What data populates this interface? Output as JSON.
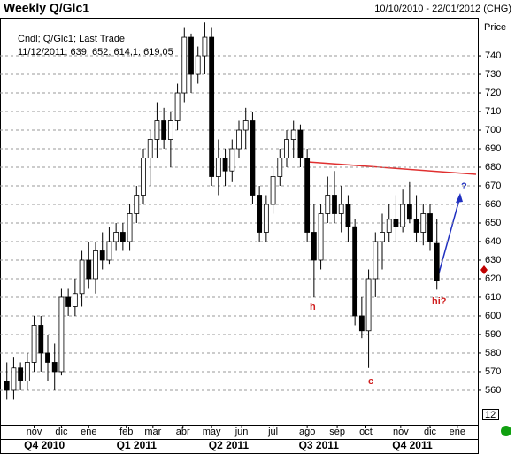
{
  "chart_data": {
    "type": "candlestick",
    "title": "Weekly Q/Glc1",
    "date_range": "10/10/2010 - 22/01/2012 (CHG)",
    "legend_lines": [
      "Cndl; Q/Glc1; Last Trade",
      "11/12/2011; 639; 652; 614,1; 619,05"
    ],
    "y_axis_label": "Price",
    "corner_label": "12",
    "up_color": "#ffffff",
    "down_color": "#000000",
    "ylim": [
      541.4,
      760.5
    ],
    "yticks": [
      560,
      570,
      580,
      590,
      600,
      610,
      620,
      630,
      640,
      650,
      660,
      670,
      680,
      690,
      700,
      710,
      720,
      730,
      740
    ],
    "xlim": [
      -1,
      69
    ],
    "xticks": [
      {
        "value": 4,
        "label": "nov"
      },
      {
        "value": 8,
        "label": "dic"
      },
      {
        "value": 12,
        "label": "ene"
      },
      {
        "value": 17.5,
        "label": "feb"
      },
      {
        "value": 21.4,
        "label": "mar"
      },
      {
        "value": 25.8,
        "label": "abr"
      },
      {
        "value": 30,
        "label": "may"
      },
      {
        "value": 34.4,
        "label": "jun"
      },
      {
        "value": 39,
        "label": "jul"
      },
      {
        "value": 44,
        "label": "ago"
      },
      {
        "value": 48.4,
        "label": "sep"
      },
      {
        "value": 52.6,
        "label": "oct"
      },
      {
        "value": 57.7,
        "label": "nov"
      },
      {
        "value": 62,
        "label": "dic"
      },
      {
        "value": 66,
        "label": "ene"
      }
    ],
    "quarter_ticks": [
      {
        "value": 5.5,
        "label": "Q4 2010"
      },
      {
        "value": 19,
        "label": "Q1 2011"
      },
      {
        "value": 32.5,
        "label": "Q2 2011"
      },
      {
        "value": 45.7,
        "label": "Q3 2011"
      },
      {
        "value": 59.4,
        "label": "Q4 2011"
      }
    ],
    "grid": true,
    "open": [
      565,
      560,
      572,
      565,
      575,
      595,
      580,
      575,
      570,
      610,
      605,
      612,
      630,
      620,
      635,
      630,
      640,
      645,
      640,
      655,
      665,
      685,
      695,
      705,
      695,
      705,
      720,
      750,
      730,
      740,
      750,
      675,
      685,
      678,
      690,
      700,
      705,
      665,
      645,
      660,
      675,
      685,
      695,
      700,
      685,
      645,
      630,
      655,
      665,
      655,
      660,
      648,
      600,
      592,
      620,
      640,
      645,
      652,
      648,
      660,
      652,
      645,
      655,
      639
    ],
    "high": [
      575,
      578,
      575,
      580,
      600,
      600,
      590,
      585,
      615,
      615,
      620,
      635,
      640,
      640,
      645,
      648,
      650,
      650,
      660,
      670,
      690,
      700,
      715,
      712,
      710,
      725,
      755,
      752,
      745,
      758,
      755,
      695,
      690,
      695,
      705,
      712,
      710,
      670,
      665,
      680,
      690,
      700,
      705,
      703,
      690,
      660,
      660,
      675,
      678,
      670,
      665,
      652,
      610,
      625,
      645,
      655,
      660,
      665,
      668,
      672,
      665,
      660,
      660,
      652
    ],
    "low": [
      555,
      555,
      560,
      560,
      570,
      570,
      565,
      560,
      568,
      600,
      600,
      605,
      615,
      612,
      625,
      628,
      635,
      635,
      635,
      650,
      660,
      670,
      685,
      690,
      680,
      700,
      715,
      720,
      725,
      730,
      670,
      665,
      670,
      672,
      685,
      690,
      660,
      640,
      640,
      655,
      670,
      680,
      685,
      680,
      640,
      610,
      625,
      650,
      650,
      645,
      640,
      595,
      588,
      572,
      610,
      625,
      640,
      640,
      645,
      650,
      640,
      638,
      635,
      614.1
    ],
    "close": [
      560,
      572,
      565,
      575,
      595,
      580,
      575,
      570,
      610,
      605,
      612,
      630,
      620,
      635,
      630,
      640,
      645,
      640,
      655,
      665,
      685,
      695,
      705,
      695,
      705,
      720,
      750,
      730,
      740,
      750,
      675,
      685,
      678,
      690,
      700,
      705,
      665,
      645,
      660,
      675,
      685,
      695,
      700,
      685,
      645,
      630,
      655,
      665,
      655,
      660,
      648,
      600,
      592,
      620,
      640,
      645,
      652,
      648,
      660,
      652,
      645,
      655,
      640,
      619.05
    ],
    "annotations": [
      "h",
      "c",
      "hi?",
      "?"
    ]
  }
}
